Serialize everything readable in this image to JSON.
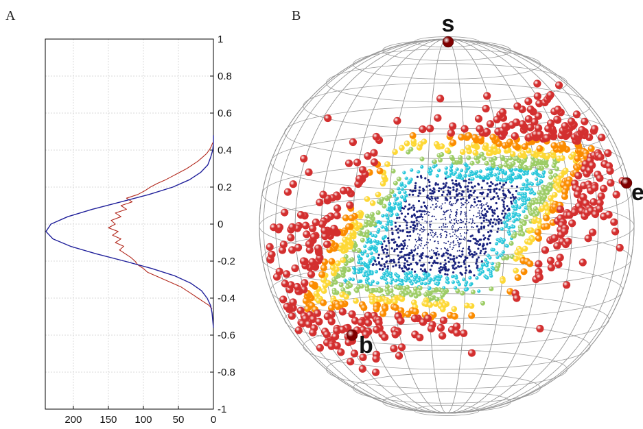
{
  "panels": {
    "a_letter": "A",
    "b_letter": "B"
  },
  "chart_data": [
    {
      "type": "line",
      "panel": "A",
      "orientation": "rotated",
      "xlabel": "",
      "ylabel": "",
      "xlim": [
        240,
        0
      ],
      "ylim": [
        -1,
        1
      ],
      "x_ticks": [
        200,
        150,
        100,
        50,
        0
      ],
      "y_ticks": [
        1,
        0.8,
        0.6,
        0.4,
        0.2,
        0,
        -0.2,
        -0.4,
        -0.6,
        -0.8,
        -1
      ],
      "x_tick_labels": [
        "200",
        "150",
        "100",
        "50",
        "0"
      ],
      "y_tick_labels": [
        "1",
        "0.8",
        "0.6",
        "0.4",
        "0.2",
        "0",
        "-0.2",
        "-0.4",
        "-0.6",
        "-0.8",
        "-1"
      ],
      "grid": true,
      "series": [
        {
          "color": "#1f1f9a",
          "kind": "gaussian_fit",
          "y": [
            -0.56,
            -0.52,
            -0.48,
            -0.44,
            -0.4,
            -0.36,
            -0.32,
            -0.28,
            -0.24,
            -0.2,
            -0.16,
            -0.12,
            -0.08,
            -0.04,
            0.0,
            0.04,
            0.08,
            0.12,
            0.16,
            0.2,
            0.24,
            0.28,
            0.32,
            0.36,
            0.4,
            0.44,
            0.48
          ],
          "x": [
            0,
            1,
            2,
            4,
            9,
            17,
            32,
            55,
            88,
            127,
            168,
            204,
            229,
            239,
            232,
            208,
            173,
            132,
            92,
            58,
            34,
            18,
            8,
            4,
            1,
            0,
            0
          ]
        },
        {
          "color": "#b2281c",
          "kind": "histogram",
          "y": [
            -0.46,
            -0.44,
            -0.42,
            -0.4,
            -0.38,
            -0.36,
            -0.34,
            -0.32,
            -0.3,
            -0.28,
            -0.26,
            -0.24,
            -0.22,
            -0.2,
            -0.18,
            -0.16,
            -0.14,
            -0.12,
            -0.1,
            -0.08,
            -0.06,
            -0.04,
            -0.02,
            0.0,
            0.02,
            0.04,
            0.06,
            0.08,
            0.1,
            0.12,
            0.14,
            0.16,
            0.18,
            0.2,
            0.22,
            0.24,
            0.26,
            0.28,
            0.3,
            0.32,
            0.34,
            0.36,
            0.38,
            0.4,
            0.42,
            0.44
          ],
          "x": [
            2,
            6,
            14,
            22,
            30,
            38,
            46,
            58,
            70,
            82,
            94,
            100,
            108,
            112,
            118,
            126,
            134,
            128,
            140,
            132,
            144,
            136,
            150,
            140,
            146,
            132,
            140,
            124,
            132,
            116,
            124,
            108,
            98,
            90,
            80,
            68,
            58,
            48,
            38,
            30,
            22,
            16,
            10,
            6,
            3,
            1
          ]
        }
      ]
    },
    {
      "type": "scatter",
      "panel": "B",
      "title": "",
      "projection": "unit-sphere",
      "wireframe": true,
      "pole_labels": [
        "s",
        "e",
        "b"
      ],
      "colormap": [
        "#1a237e",
        "#26c6da",
        "#9ccc65",
        "#fdd835",
        "#fb8c00",
        "#d32f2f",
        "#7f0000"
      ]
    }
  ]
}
